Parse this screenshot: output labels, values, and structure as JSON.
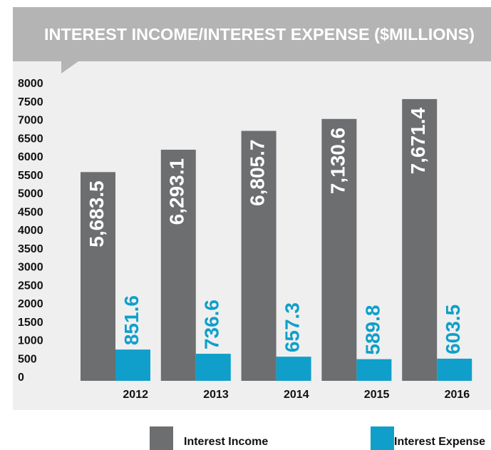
{
  "chart_data": {
    "type": "bar",
    "title": "INTEREST INCOME/INTEREST EXPENSE ($MILLIONS)",
    "categories": [
      "2012",
      "2013",
      "2014",
      "2015",
      "2016"
    ],
    "series": [
      {
        "name": "Interest Income",
        "color": "#6d6e70",
        "values": [
          5683.5,
          6293.1,
          6805.7,
          7130.6,
          7671.4
        ],
        "value_labels": [
          "5,683.5",
          "6,293.1",
          "6,805.7",
          "7,130.6",
          "7,671.4"
        ]
      },
      {
        "name": "Interest Expense",
        "color": "#0f9fca",
        "values": [
          851.6,
          736.6,
          657.3,
          589.8,
          603.5
        ],
        "value_labels": [
          "851.6",
          "736.6",
          "657.3",
          "589.8",
          "603.5"
        ]
      }
    ],
    "ylim": [
      0,
      8000
    ],
    "yticks": [
      0,
      500,
      1000,
      1500,
      2000,
      2500,
      3000,
      3500,
      4000,
      4500,
      5000,
      5500,
      6000,
      6500,
      7000,
      7500,
      8000
    ],
    "grid": false
  }
}
